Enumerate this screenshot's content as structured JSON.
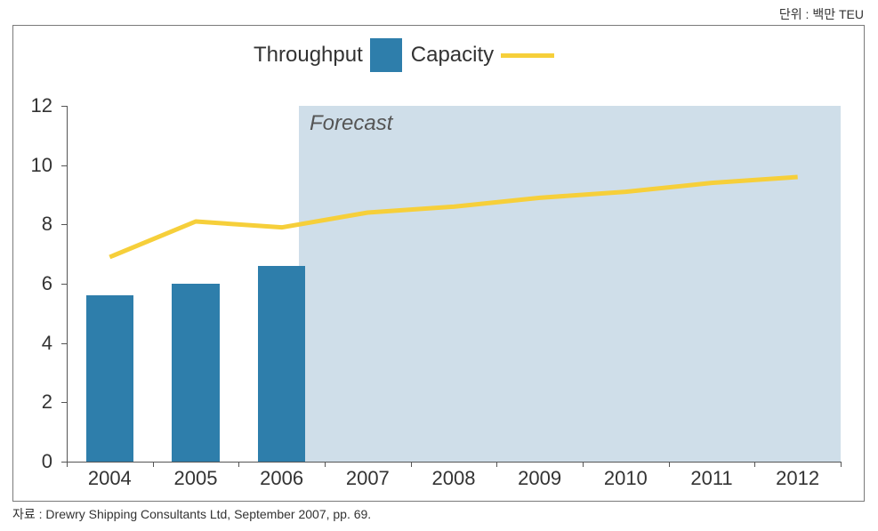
{
  "unit_label": "단위 : 백만 TEU",
  "source": "자료 : Drewry Shipping Consultants Ltd, September 2007, pp. 69.",
  "legend": {
    "series1_label": "Throughput",
    "series2_label": "Capacity"
  },
  "chart": {
    "type": "bar+line",
    "background_color": "#ffffff",
    "border_color": "#7a7a7a",
    "forecast_label": "Forecast",
    "forecast_bg_color": "#cfdee9",
    "forecast_start_category_index": 3,
    "x_categories": [
      "2004",
      "2005",
      "2006",
      "2007",
      "2008",
      "2009",
      "2010",
      "2011",
      "2012"
    ],
    "ylim": [
      0,
      12
    ],
    "ytick_step": 2,
    "bar": {
      "color": "#2e7eab",
      "values": [
        5.6,
        6.0,
        6.6
      ],
      "width_ratio": 0.55
    },
    "line": {
      "color": "#f6cf3a",
      "width": 5,
      "values": [
        6.9,
        8.1,
        7.9,
        8.4,
        8.6,
        8.9,
        9.1,
        9.4,
        9.6
      ]
    },
    "axis_color": "#555555",
    "tick_fontsize": 22,
    "legend_fontsize": 24,
    "forecast_fontsize": 24
  }
}
